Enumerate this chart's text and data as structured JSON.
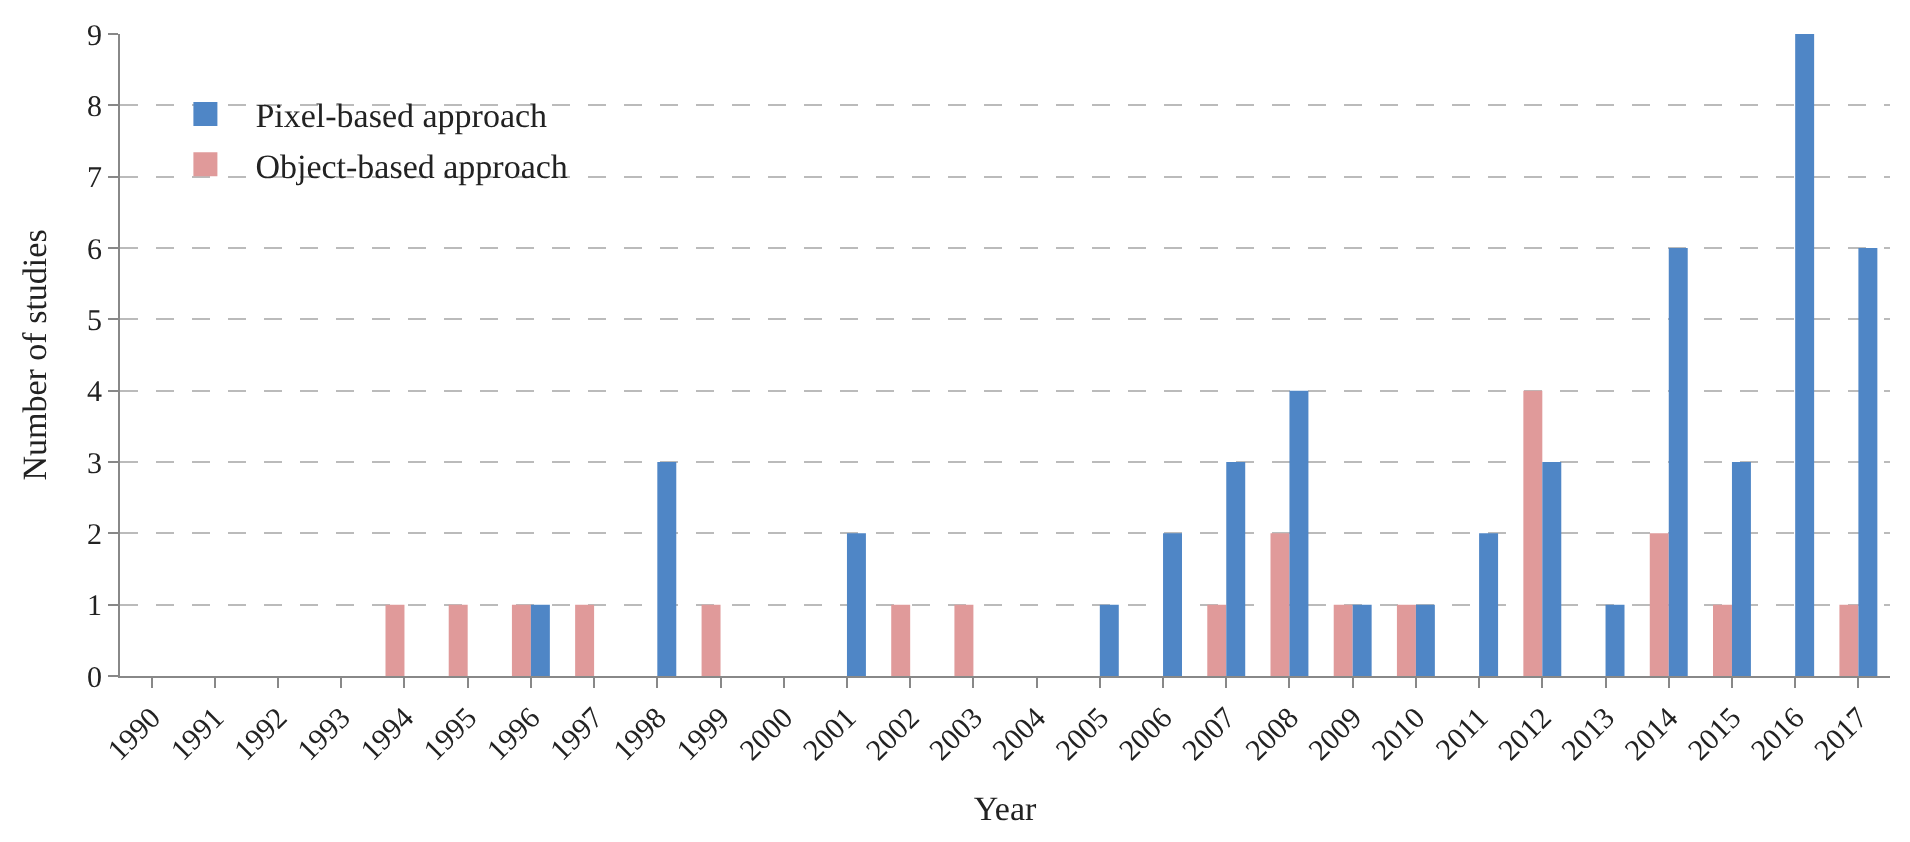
{
  "chart_data": {
    "type": "bar",
    "xlabel": "Year",
    "ylabel": "Number of studies",
    "categories": [
      "1990",
      "1991",
      "1992",
      "1993",
      "1994",
      "1995",
      "1996",
      "1997",
      "1998",
      "1999",
      "2000",
      "2001",
      "2002",
      "2003",
      "2004",
      "2005",
      "2006",
      "2007",
      "2008",
      "2009",
      "2010",
      "2011",
      "2012",
      "2013",
      "2014",
      "2015",
      "2016",
      "2017"
    ],
    "series": [
      {
        "name": "Pixel-based approach",
        "color": "#4f86c6",
        "values": [
          0,
          0,
          0,
          0,
          0,
          0,
          1,
          0,
          3,
          0,
          0,
          2,
          0,
          0,
          0,
          1,
          2,
          3,
          4,
          1,
          1,
          2,
          3,
          1,
          6,
          3,
          9,
          6
        ]
      },
      {
        "name": "Object-based approach",
        "color": "#e09a9a",
        "values": [
          0,
          0,
          0,
          0,
          1,
          1,
          1,
          1,
          0,
          1,
          0,
          0,
          1,
          1,
          0,
          0,
          0,
          1,
          2,
          1,
          1,
          0,
          4,
          0,
          2,
          1,
          0,
          1
        ]
      }
    ],
    "ylim": [
      0,
      9
    ],
    "yticks": [
      0,
      1,
      2,
      3,
      4,
      5,
      6,
      7,
      8,
      9
    ],
    "grid": "y",
    "legend": "top left"
  }
}
